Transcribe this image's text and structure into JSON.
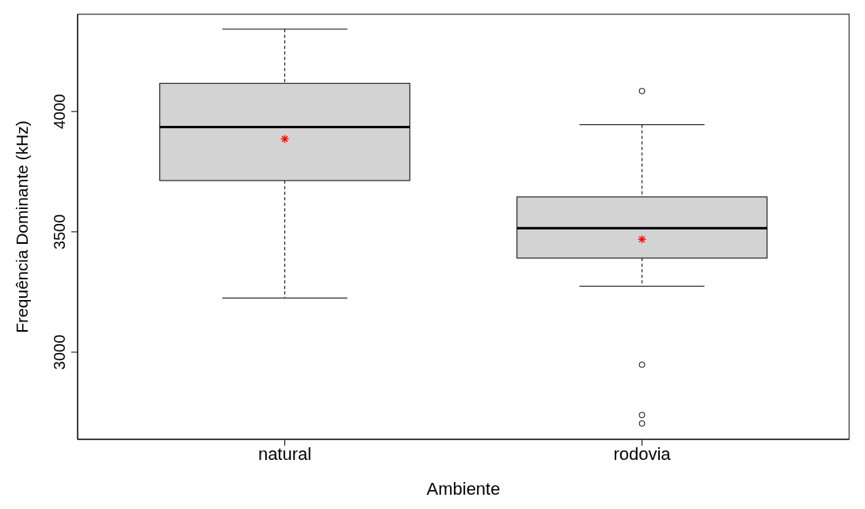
{
  "chart_data": {
    "type": "box",
    "xlabel": "Ambiente",
    "ylabel": "Frequência Dominante (kHz)",
    "categories": [
      "natural",
      "rodovia"
    ],
    "boxes": [
      {
        "low": 3225,
        "q1": 3713,
        "median": 3935,
        "q3": 4117,
        "high": 4342,
        "mean": 3886
      },
      {
        "low": 3274,
        "q1": 3391,
        "median": 3515,
        "q3": 3645,
        "high": 3945,
        "mean": 3469,
        "outliers": [
          4085,
          2948,
          2739,
          2704
        ]
      }
    ],
    "color": "#d3d3d3",
    "ylim": [
      2638,
      4404
    ],
    "yticks": [
      3000,
      3500,
      4000
    ],
    "grid": false,
    "legend": false
  }
}
